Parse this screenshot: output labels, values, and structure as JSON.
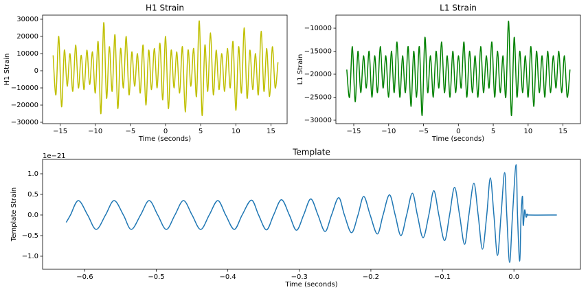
{
  "chart_data": [
    {
      "type": "line",
      "title": "H1 Strain",
      "x_label": "Time (seconds)",
      "y_label": "H1 Strain",
      "xlim": [
        -17.5,
        17.3
      ],
      "ylim": [
        -30800,
        32400
      ],
      "xticks": [
        {
          "value": -15,
          "label": "−15"
        },
        {
          "value": -10,
          "label": "−10"
        },
        {
          "value": -5,
          "label": "−5"
        },
        0,
        5,
        10,
        15
      ],
      "yticks": [
        30000,
        20000,
        10000,
        0,
        {
          "value": -10000,
          "label": "−10000"
        },
        {
          "value": -20000,
          "label": "−20000"
        },
        {
          "value": -30000,
          "label": "−30000"
        }
      ],
      "x": [
        -16,
        -15.6,
        -15.2,
        -14.8,
        -14.4,
        -14,
        -13.6,
        -13.2,
        -12.8,
        -12.4,
        -12,
        -11.6,
        -11.2,
        -10.8,
        -10.4,
        -10,
        -9.6,
        -9.2,
        -8.8,
        -8.4,
        -8,
        -7.6,
        -7.2,
        -6.8,
        -6.4,
        -6,
        -5.6,
        -5.2,
        -4.8,
        -4.4,
        -4,
        -3.6,
        -3.2,
        -2.8,
        -2.4,
        -2,
        -1.6,
        -1.2,
        -0.8,
        -0.4,
        0,
        0.4,
        0.8,
        1.2,
        1.6,
        2,
        2.4,
        2.8,
        3.2,
        3.6,
        4,
        4.4,
        4.8,
        5.2,
        5.6,
        6,
        6.4,
        6.8,
        7.2,
        7.6,
        8,
        8.4,
        8.8,
        9.2,
        9.6,
        10,
        10.4,
        10.8,
        11.2,
        11.6,
        12,
        12.4,
        12.8,
        13.2,
        13.6,
        14,
        14.4,
        14.8,
        15.2,
        15.6,
        16
      ],
      "series": [
        {
          "color": "#bfbf00",
          "values": [
            9000,
            -14000,
            20000,
            -21000,
            12000,
            -9000,
            10000,
            -12000,
            15000,
            -10000,
            9000,
            -11000,
            12000,
            -8000,
            11000,
            -13000,
            17000,
            -25000,
            28000,
            -16000,
            14000,
            -12000,
            21000,
            -22000,
            13000,
            -10000,
            20000,
            -14000,
            11000,
            -9000,
            10000,
            -13000,
            15000,
            -20000,
            12000,
            -11000,
            13000,
            -10000,
            16000,
            -17000,
            20000,
            -22000,
            12000,
            -10000,
            11000,
            -13000,
            14000,
            -24000,
            12000,
            -9000,
            13000,
            -15000,
            29000,
            -26000,
            15000,
            -12000,
            22000,
            -14000,
            12000,
            -11000,
            10000,
            -12000,
            13000,
            -10000,
            17000,
            -23000,
            14000,
            -13000,
            25000,
            -16000,
            12000,
            -11000,
            10000,
            -14000,
            23000,
            -12000,
            13000,
            -15000,
            14000,
            -10000,
            5000
          ]
        }
      ]
    },
    {
      "type": "line",
      "title": "L1 Strain",
      "x_label": "Time (seconds)",
      "y_label": "L1 Strain",
      "xlim": [
        -17.56,
        17.5
      ],
      "ylim": [
        -30750,
        -7160
      ],
      "xticks": [
        {
          "value": -15,
          "label": "−15"
        },
        {
          "value": -10,
          "label": "−10"
        },
        {
          "value": -5,
          "label": "−5"
        },
        0,
        5,
        10,
        15
      ],
      "yticks": [
        {
          "value": -10000,
          "label": "−10000"
        },
        {
          "value": -15000,
          "label": "−15000"
        },
        {
          "value": -20000,
          "label": "−20000"
        },
        {
          "value": -25000,
          "label": "−25000"
        },
        {
          "value": -30000,
          "label": "−30000"
        }
      ],
      "x": [
        -16,
        -15.6,
        -15.2,
        -14.8,
        -14.4,
        -14,
        -13.6,
        -13.2,
        -12.8,
        -12.4,
        -12,
        -11.6,
        -11.2,
        -10.8,
        -10.4,
        -10,
        -9.6,
        -9.2,
        -8.8,
        -8.4,
        -8,
        -7.6,
        -7.2,
        -6.8,
        -6.4,
        -6,
        -5.6,
        -5.2,
        -4.8,
        -4.4,
        -4,
        -3.6,
        -3.2,
        -2.8,
        -2.4,
        -2,
        -1.6,
        -1.2,
        -0.8,
        -0.4,
        0,
        0.4,
        0.8,
        1.2,
        1.6,
        2,
        2.4,
        2.8,
        3.2,
        3.6,
        4,
        4.4,
        4.8,
        5.2,
        5.6,
        6,
        6.4,
        6.8,
        7.2,
        7.6,
        8,
        8.4,
        8.8,
        9.2,
        9.6,
        10,
        10.4,
        10.8,
        11.2,
        11.6,
        12,
        12.4,
        12.8,
        13.2,
        13.6,
        14,
        14.4,
        14.8,
        15.2,
        15.6,
        16
      ],
      "series": [
        {
          "color": "#008000",
          "values": [
            -19000,
            -25000,
            -14000,
            -26000,
            -15000,
            -24000,
            -16000,
            -23000,
            -15000,
            -25000,
            -16000,
            -24000,
            -14000,
            -23000,
            -16000,
            -25000,
            -15000,
            -24000,
            -13000,
            -25000,
            -16000,
            -24000,
            -14000,
            -27000,
            -15000,
            -25000,
            -14000,
            -29000,
            -12000,
            -24000,
            -16000,
            -25000,
            -15000,
            -23000,
            -13000,
            -24000,
            -16000,
            -25000,
            -15000,
            -24000,
            -16000,
            -23000,
            -13000,
            -25000,
            -15000,
            -24000,
            -16000,
            -25000,
            -14000,
            -24000,
            -16000,
            -23000,
            -13000,
            -25000,
            -15000,
            -24000,
            -16000,
            -25000,
            -8500,
            -29000,
            -12000,
            -25000,
            -15000,
            -24000,
            -16000,
            -25000,
            -14000,
            -27000,
            -15000,
            -24000,
            -16000,
            -25000,
            -15000,
            -24000,
            -16000,
            -23000,
            -15000,
            -24000,
            -16000,
            -25000,
            -19000
          ]
        }
      ]
    },
    {
      "type": "line",
      "title": "Template",
      "x_label": "Time (seconds)",
      "y_label": "Template Strain",
      "y_scale_label": "1e−21",
      "xlim": [
        -0.659,
        0.093
      ],
      "ylim": [
        -1.317,
        1.35
      ],
      "xticks": [
        {
          "value": -0.6,
          "label": "−0.6"
        },
        {
          "value": -0.5,
          "label": "−0.5"
        },
        {
          "value": -0.4,
          "label": "−0.4"
        },
        {
          "value": -0.3,
          "label": "−0.3"
        },
        {
          "value": -0.2,
          "label": "−0.2"
        },
        {
          "value": -0.1,
          "label": "−0.1"
        },
        {
          "value": 0,
          "label": "0.0"
        }
      ],
      "yticks": [
        {
          "value": 1,
          "label": "1.0"
        },
        0.5,
        {
          "value": 0,
          "label": "0.0"
        },
        {
          "value": -0.5,
          "label": "−0.5"
        },
        {
          "value": -1,
          "label": "−1.0"
        }
      ],
      "x": [
        -0.626,
        -0.62,
        -0.609,
        -0.596,
        -0.584,
        -0.571,
        -0.559,
        -0.546,
        -0.535,
        -0.522,
        -0.51,
        -0.498,
        -0.486,
        -0.474,
        -0.462,
        -0.45,
        -0.438,
        -0.426,
        -0.414,
        -0.403,
        -0.391,
        -0.38,
        -0.367,
        -0.357,
        -0.346,
        -0.336,
        -0.325,
        -0.314,
        -0.304,
        -0.294,
        -0.284,
        -0.274,
        -0.264,
        -0.255,
        -0.245,
        -0.237,
        -0.227,
        -0.218,
        -0.21,
        -0.201,
        -0.191,
        -0.183,
        -0.174,
        -0.166,
        -0.158,
        -0.15,
        -0.142,
        -0.135,
        -0.127,
        -0.119,
        -0.112,
        -0.105,
        -0.097,
        -0.09,
        -0.083,
        -0.076,
        -0.069,
        -0.063,
        -0.056,
        -0.05,
        -0.044,
        -0.038,
        -0.033,
        -0.028,
        -0.023,
        -0.018,
        -0.013,
        -0.01,
        -0.006,
        -0.002,
        0.003,
        0.005,
        0.008,
        0.01,
        0.012,
        0.013,
        0.015,
        0.017,
        0.019,
        0.021,
        0.06
      ],
      "series": [
        {
          "color": "#1f77b4",
          "values": [
            -0.18,
            0,
            0.35,
            0,
            -0.35,
            0,
            0.35,
            0,
            -0.35,
            0,
            0.35,
            0,
            -0.35,
            0,
            0.35,
            0,
            -0.35,
            0,
            0.35,
            0,
            -0.35,
            0,
            0.36,
            0,
            -0.36,
            0,
            0.37,
            0,
            -0.37,
            0,
            0.39,
            0,
            -0.4,
            0,
            0.42,
            0,
            -0.43,
            0,
            0.45,
            0,
            -0.46,
            0,
            0.49,
            0,
            -0.5,
            0,
            0.53,
            0,
            -0.55,
            0,
            0.59,
            0,
            -0.62,
            0,
            0.67,
            0,
            -0.71,
            0,
            0.77,
            0,
            -0.83,
            0,
            0.9,
            0,
            -0.98,
            0,
            1.03,
            0,
            -1.15,
            0,
            1.22,
            0,
            -1.12,
            0,
            0.45,
            -0.25,
            0.12,
            -0.05,
            0.02,
            0,
            0
          ]
        }
      ]
    }
  ]
}
